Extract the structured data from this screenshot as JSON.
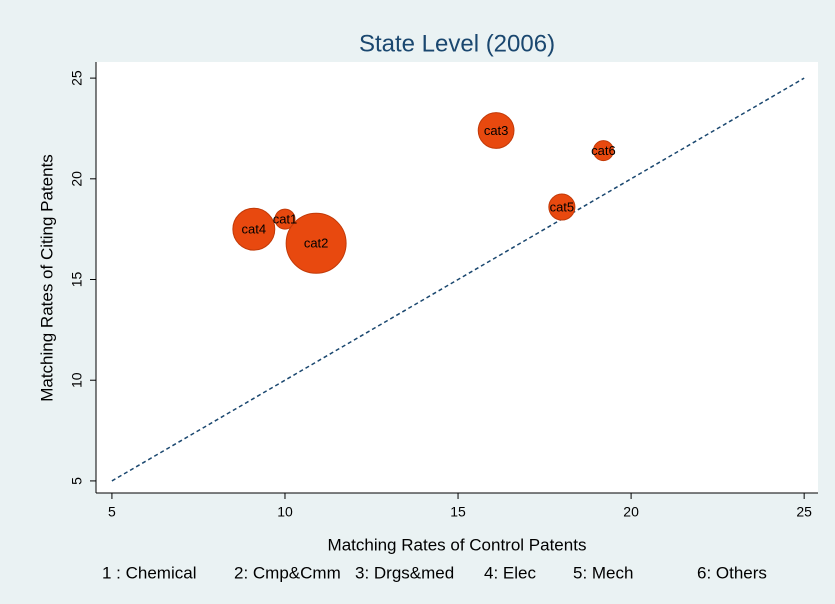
{
  "chart_data": {
    "type": "bubble",
    "title": "State Level (2006)",
    "x_label": "Matching Rates of Control Patents",
    "y_label": "Matching Rates of Citing Patents",
    "labels": [
      "cat1",
      "cat2",
      "cat3",
      "cat4",
      "cat5",
      "cat6"
    ],
    "x": [
      10.0,
      10.9,
      16.1,
      9.1,
      18.0,
      19.2
    ],
    "y": [
      18.0,
      16.8,
      22.4,
      17.5,
      18.6,
      21.4
    ],
    "sizes": [
      10,
      90,
      32,
      44,
      17,
      10
    ],
    "color": "#e8490f",
    "xlim": [
      4.54,
      25.4
    ],
    "xticks": [
      5,
      10,
      15,
      20,
      25
    ],
    "ylim": [
      4.4,
      25.8
    ],
    "yticks": [
      5,
      10,
      15,
      20,
      25
    ],
    "diagonal_line": true,
    "note": [
      "1 : Chemical",
      "2: Cmp&Cmm",
      "3: Drgs&med",
      "4: Elec",
      "5: Mech",
      "6: Others"
    ]
  }
}
